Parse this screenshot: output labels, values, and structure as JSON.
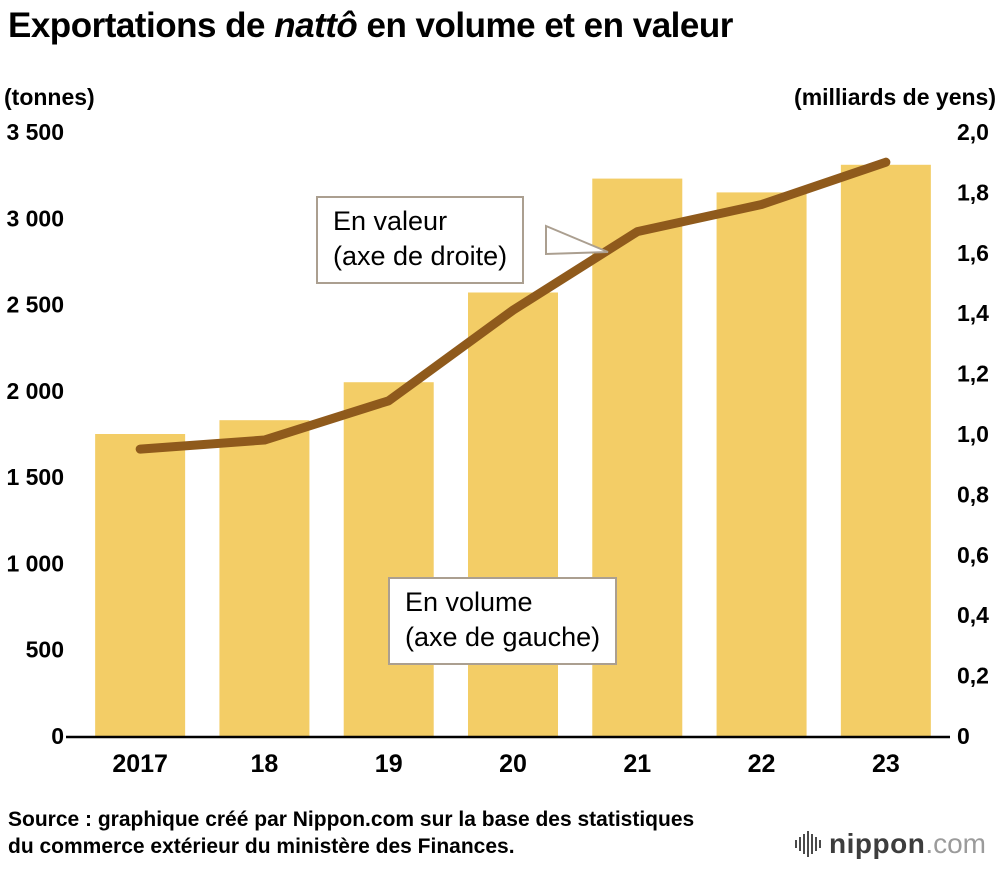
{
  "header": {
    "title_part1": "Exportations de ",
    "title_italic": "nattô",
    "title_part2": " en volume et en valeur"
  },
  "chart_data": {
    "type": "bar+line",
    "title": "Exportations de nattô en volume et en valeur",
    "categories": [
      "2017",
      "18",
      "19",
      "20",
      "21",
      "22",
      "23"
    ],
    "series": [
      {
        "name": "En volume (axe de gauche)",
        "type": "bar",
        "axis": "left",
        "unit": "tonnes",
        "color": "#F3CD66",
        "values": [
          1750,
          1830,
          2050,
          2570,
          3230,
          3150,
          3310
        ]
      },
      {
        "name": "En valeur (axe de droite)",
        "type": "line",
        "axis": "right",
        "unit": "milliards de yens",
        "color": "#8F5A1C",
        "values": [
          0.95,
          0.98,
          1.11,
          1.41,
          1.67,
          1.76,
          1.9
        ]
      }
    ],
    "left_axis": {
      "unit_label": "(tonnes)",
      "min": 0,
      "max": 3500,
      "tick_values": [
        3500,
        3000,
        2500,
        2000,
        1500,
        1000,
        500,
        0
      ],
      "tick_labels": [
        "3 500",
        "3 000",
        "2 500",
        "2 000",
        "1 500",
        "1 000",
        "500",
        "0"
      ]
    },
    "right_axis": {
      "unit_label": "(milliards de yens)",
      "min": 0,
      "max": 2.0,
      "tick_values": [
        2.0,
        1.8,
        1.6,
        1.4,
        1.2,
        1.0,
        0.8,
        0.6,
        0.4,
        0.2,
        0
      ],
      "tick_labels": [
        "2,0",
        "1,8",
        "1,6",
        "1,4",
        "1,2",
        "1,0",
        "0,8",
        "0,6",
        "0,4",
        "0,2",
        "0"
      ]
    },
    "grid": false,
    "legend_position": "annotations-on-chart"
  },
  "annotations": {
    "value": {
      "line1": "En valeur",
      "line2": "(axe de droite)"
    },
    "volume": {
      "line1": "En volume",
      "line2": "(axe de gauche)"
    }
  },
  "source": {
    "line1": "Source : graphique créé par Nippon.com sur la base des statistiques",
    "line2": "du commerce extérieur du ministère des Finances."
  },
  "logo": {
    "name": "nippon",
    "tld": ".com"
  },
  "colors": {
    "bar": "#F3CD66",
    "line": "#8F5A1C",
    "callout_border": "#ab9f90"
  }
}
